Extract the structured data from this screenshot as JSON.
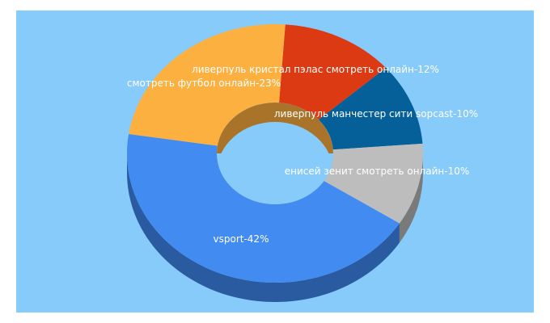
{
  "chart_data": {
    "type": "pie",
    "style": "3d-donut",
    "categories": [
      "ливерпуль кристал пэлас смотреть онлайн",
      "ливерпуль манчестер сити sopcast",
      "енисей зенит смотреть онлайн",
      "vsport",
      "смотреть футбол онлайн"
    ],
    "values": [
      12,
      10,
      10,
      42,
      23
    ],
    "labels": [
      "ливерпуль кристал пэлас смотреть онлайн-12%",
      "ливерпуль манчестер сити sopcast-10%",
      "енисей зенит смотреть онлайн-10%",
      "vsport-42%",
      "смотреть футбол онлайн-23%"
    ],
    "colors": [
      "#dc3a12",
      "#05609a",
      "#bdbdbd",
      "#428bf0",
      "#fbb040"
    ],
    "side_colors": [
      "#8a2408",
      "#033a5e",
      "#7a7a7a",
      "#2a5ba0",
      "#b07a22"
    ],
    "background": "#87cbfa",
    "title": ""
  }
}
